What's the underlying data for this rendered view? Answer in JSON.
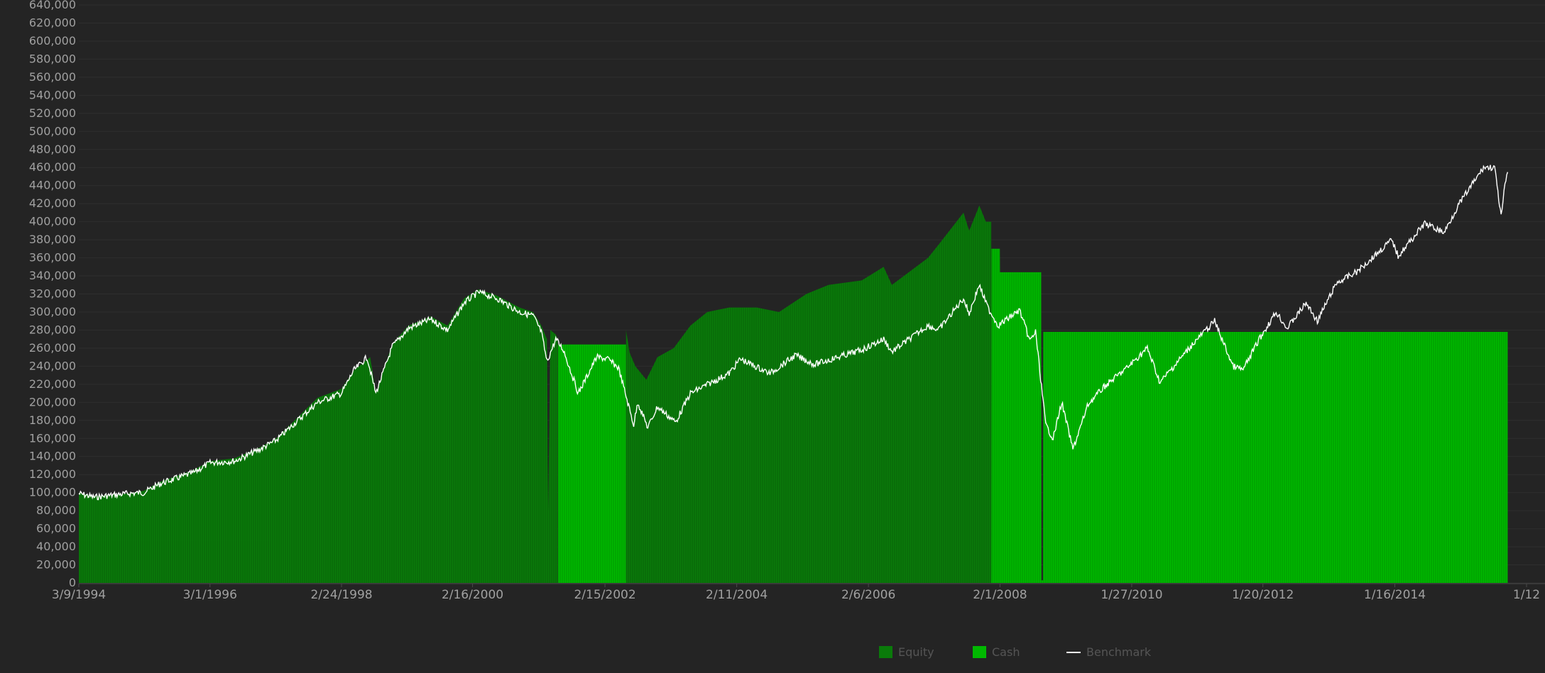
{
  "chart_data": {
    "type": "area",
    "title": "",
    "xlabel": "",
    "ylabel": "",
    "ylim": [
      0,
      640000
    ],
    "y_ticks": [
      0,
      20000,
      40000,
      60000,
      80000,
      100000,
      120000,
      140000,
      160000,
      180000,
      200000,
      220000,
      240000,
      260000,
      280000,
      300000,
      320000,
      340000,
      360000,
      380000,
      400000,
      420000,
      440000,
      460000,
      480000,
      500000,
      520000,
      540000,
      560000,
      580000,
      600000,
      620000,
      640000
    ],
    "y_tick_labels": [
      "0",
      "20,000",
      "40,000",
      "60,000",
      "80,000",
      "100,000",
      "120,000",
      "140,000",
      "160,000",
      "180,000",
      "200,000",
      "220,000",
      "240,000",
      "260,000",
      "280,000",
      "300,000",
      "320,000",
      "340,000",
      "360,000",
      "380,000",
      "400,000",
      "420,000",
      "440,000",
      "460,000",
      "480,000",
      "500,000",
      "520,000",
      "540,000",
      "560,000",
      "580,000",
      "600,000",
      "620,000",
      "640,000"
    ],
    "x_range": [
      "1994-03-09",
      "2015-09-30"
    ],
    "x_ticks": [
      {
        "date": "1994-03-09",
        "label": "3/9/1994"
      },
      {
        "date": "1996-03-01",
        "label": "3/1/1996"
      },
      {
        "date": "1998-02-24",
        "label": "2/24/1998"
      },
      {
        "date": "2000-02-16",
        "label": "2/16/2000"
      },
      {
        "date": "2002-02-15",
        "label": "2/15/2002"
      },
      {
        "date": "2004-02-11",
        "label": "2/11/2004"
      },
      {
        "date": "2006-02-06",
        "label": "2/6/2006"
      },
      {
        "date": "2008-02-01",
        "label": "2/1/2008"
      },
      {
        "date": "2010-01-27",
        "label": "1/27/2010"
      },
      {
        "date": "2012-01-20",
        "label": "1/20/2012"
      },
      {
        "date": "2014-01-16",
        "label": "1/16/2014"
      },
      {
        "date": "2016-01-12",
        "label": "1/12"
      }
    ],
    "grid": true,
    "legend_position": "bottom-center",
    "series": [
      {
        "name": "Equity",
        "color": "#0a7a0a",
        "type": "area",
        "points": [
          [
            "1994-03-09",
            100000
          ],
          [
            "1994-06-01",
            96000
          ],
          [
            "1994-12-01",
            99000
          ],
          [
            "1995-03-01",
            102000
          ],
          [
            "1995-06-01",
            112000
          ],
          [
            "1995-12-01",
            125000
          ],
          [
            "1996-03-01",
            135000
          ],
          [
            "1996-07-15",
            138000
          ],
          [
            "1996-12-01",
            150000
          ],
          [
            "1997-03-01",
            160000
          ],
          [
            "1997-06-01",
            178000
          ],
          [
            "1997-10-15",
            205000
          ],
          [
            "1998-02-24",
            215000
          ],
          [
            "1998-05-01",
            235000
          ],
          [
            "1998-08-01",
            250000
          ],
          [
            "1998-09-01",
            210000
          ],
          [
            "1998-12-01",
            265000
          ],
          [
            "1999-03-01",
            285000
          ],
          [
            "1999-07-01",
            295000
          ],
          [
            "1999-10-01",
            285000
          ],
          [
            "1999-12-31",
            315000
          ],
          [
            "2000-03-20",
            325000
          ],
          [
            "2000-07-01",
            318000
          ],
          [
            "2000-11-01",
            305000
          ],
          [
            "2001-01-15",
            300000
          ],
          [
            "2001-03-01",
            285000
          ],
          [
            "2001-04-01",
            270000
          ],
          [
            "2001-04-08",
            80000
          ],
          [
            "2001-04-20",
            280000
          ],
          [
            "2001-05-20",
            275000
          ],
          [
            "2001-05-30",
            270000
          ]
        ]
      },
      {
        "name": "Cash",
        "color": "#00b800",
        "type": "area",
        "points": [
          [
            "2001-06-01",
            264000
          ],
          [
            "2002-06-10",
            264000
          ],
          [
            "2002-06-11",
            3000
          ],
          [
            "2002-07-01",
            3000
          ],
          [
            "2002-07-15",
            3000
          ],
          [
            "2002-08-31",
            3000
          ],
          [
            "2002-09-01",
            3000
          ],
          [
            "2007-12-15",
            3000
          ],
          [
            "2007-12-16",
            370000
          ],
          [
            "2008-01-31",
            370000
          ],
          [
            "2008-02-01",
            344000
          ],
          [
            "2008-09-15",
            344000
          ],
          [
            "2008-09-16",
            3000
          ],
          [
            "2008-09-25",
            3000
          ],
          [
            "2008-09-26",
            278000
          ],
          [
            "2015-09-30",
            278000
          ]
        ]
      },
      {
        "name": "Equity",
        "color": "#0a7a0a",
        "type": "area",
        "points": [
          [
            "2002-06-11",
            280000
          ],
          [
            "2002-07-01",
            255000
          ],
          [
            "2002-08-01",
            240000
          ],
          [
            "2002-10-01",
            225000
          ],
          [
            "2002-12-01",
            250000
          ],
          [
            "2003-03-01",
            260000
          ],
          [
            "2003-06-01",
            285000
          ],
          [
            "2003-09-01",
            300000
          ],
          [
            "2003-12-31",
            305000
          ],
          [
            "2004-06-01",
            305000
          ],
          [
            "2004-10-01",
            300000
          ],
          [
            "2005-03-01",
            320000
          ],
          [
            "2005-07-01",
            330000
          ],
          [
            "2005-12-31",
            335000
          ],
          [
            "2006-05-01",
            350000
          ],
          [
            "2006-06-15",
            330000
          ],
          [
            "2006-12-31",
            360000
          ],
          [
            "2007-03-01",
            375000
          ],
          [
            "2007-07-15",
            410000
          ],
          [
            "2007-08-15",
            390000
          ],
          [
            "2007-10-10",
            418000
          ],
          [
            "2007-11-15",
            400000
          ],
          [
            "2007-12-15",
            400000
          ]
        ]
      },
      {
        "name": "Benchmark",
        "color": "#ffffff",
        "type": "line",
        "points": [
          [
            "1994-03-09",
            99000
          ],
          [
            "1994-06-01",
            95000
          ],
          [
            "1994-12-01",
            99000
          ],
          [
            "1995-03-01",
            100000
          ],
          [
            "1995-06-01",
            110000
          ],
          [
            "1995-12-01",
            122000
          ],
          [
            "1996-03-01",
            133000
          ],
          [
            "1996-07-15",
            135000
          ],
          [
            "1996-12-01",
            148000
          ],
          [
            "1997-03-01",
            158000
          ],
          [
            "1997-06-01",
            175000
          ],
          [
            "1997-10-15",
            200000
          ],
          [
            "1998-02-24",
            210000
          ],
          [
            "1998-05-01",
            235000
          ],
          [
            "1998-07-15",
            250000
          ],
          [
            "1998-09-01",
            210000
          ],
          [
            "1998-12-01",
            262000
          ],
          [
            "1999-03-01",
            282000
          ],
          [
            "1999-07-01",
            292000
          ],
          [
            "1999-10-01",
            280000
          ],
          [
            "1999-12-31",
            310000
          ],
          [
            "2000-03-20",
            322000
          ],
          [
            "2000-07-01",
            315000
          ],
          [
            "2000-11-01",
            300000
          ],
          [
            "2001-01-15",
            296000
          ],
          [
            "2001-03-01",
            278000
          ],
          [
            "2001-04-01",
            245000
          ],
          [
            "2001-05-20",
            270000
          ],
          [
            "2001-07-01",
            258000
          ],
          [
            "2001-09-21",
            210000
          ],
          [
            "2001-12-31",
            250000
          ],
          [
            "2002-03-01",
            248000
          ],
          [
            "2002-05-01",
            238000
          ],
          [
            "2002-07-23",
            175000
          ],
          [
            "2002-08-15",
            200000
          ],
          [
            "2002-10-09",
            172000
          ],
          [
            "2002-12-01",
            195000
          ],
          [
            "2003-03-11",
            178000
          ],
          [
            "2003-06-01",
            210000
          ],
          [
            "2003-12-31",
            232000
          ],
          [
            "2004-03-01",
            248000
          ],
          [
            "2004-08-12",
            232000
          ],
          [
            "2004-12-31",
            252000
          ],
          [
            "2005-04-15",
            242000
          ],
          [
            "2005-12-31",
            258000
          ],
          [
            "2006-05-01",
            270000
          ],
          [
            "2006-06-15",
            256000
          ],
          [
            "2006-12-31",
            285000
          ],
          [
            "2007-02-27",
            280000
          ],
          [
            "2007-07-15",
            315000
          ],
          [
            "2007-08-15",
            298000
          ],
          [
            "2007-10-09",
            330000
          ],
          [
            "2007-11-26",
            305000
          ],
          [
            "2008-01-22",
            285000
          ],
          [
            "2008-05-19",
            302000
          ],
          [
            "2008-07-15",
            268000
          ],
          [
            "2008-08-15",
            278000
          ],
          [
            "2008-10-10",
            175000
          ],
          [
            "2008-11-20",
            160000
          ],
          [
            "2009-01-06",
            200000
          ],
          [
            "2009-03-09",
            148000
          ],
          [
            "2009-06-01",
            198000
          ],
          [
            "2009-09-01",
            218000
          ],
          [
            "2009-12-31",
            238000
          ],
          [
            "2010-04-23",
            260000
          ],
          [
            "2010-07-02",
            222000
          ],
          [
            "2010-12-31",
            265000
          ],
          [
            "2011-04-29",
            290000
          ],
          [
            "2011-08-08",
            240000
          ],
          [
            "2011-10-03",
            236000
          ],
          [
            "2011-12-31",
            270000
          ],
          [
            "2012-04-02",
            300000
          ],
          [
            "2012-06-01",
            282000
          ],
          [
            "2012-09-14",
            310000
          ],
          [
            "2012-11-15",
            290000
          ],
          [
            "2013-03-01",
            332000
          ],
          [
            "2013-06-24",
            345000
          ],
          [
            "2013-12-31",
            380000
          ],
          [
            "2014-02-03",
            362000
          ],
          [
            "2014-06-30",
            398000
          ],
          [
            "2014-10-15",
            388000
          ],
          [
            "2014-12-31",
            418000
          ],
          [
            "2015-05-20",
            460000
          ],
          [
            "2015-07-20",
            460000
          ],
          [
            "2015-08-25",
            405000
          ],
          [
            "2015-09-15",
            440000
          ],
          [
            "2015-09-30",
            455000
          ]
        ]
      }
    ]
  },
  "legend": [
    {
      "label": "Equity",
      "color": "#0a7a0a",
      "kind": "box"
    },
    {
      "label": "Cash",
      "color": "#00b800",
      "kind": "box"
    },
    {
      "label": "Benchmark",
      "color": "#ffffff",
      "kind": "line"
    }
  ]
}
